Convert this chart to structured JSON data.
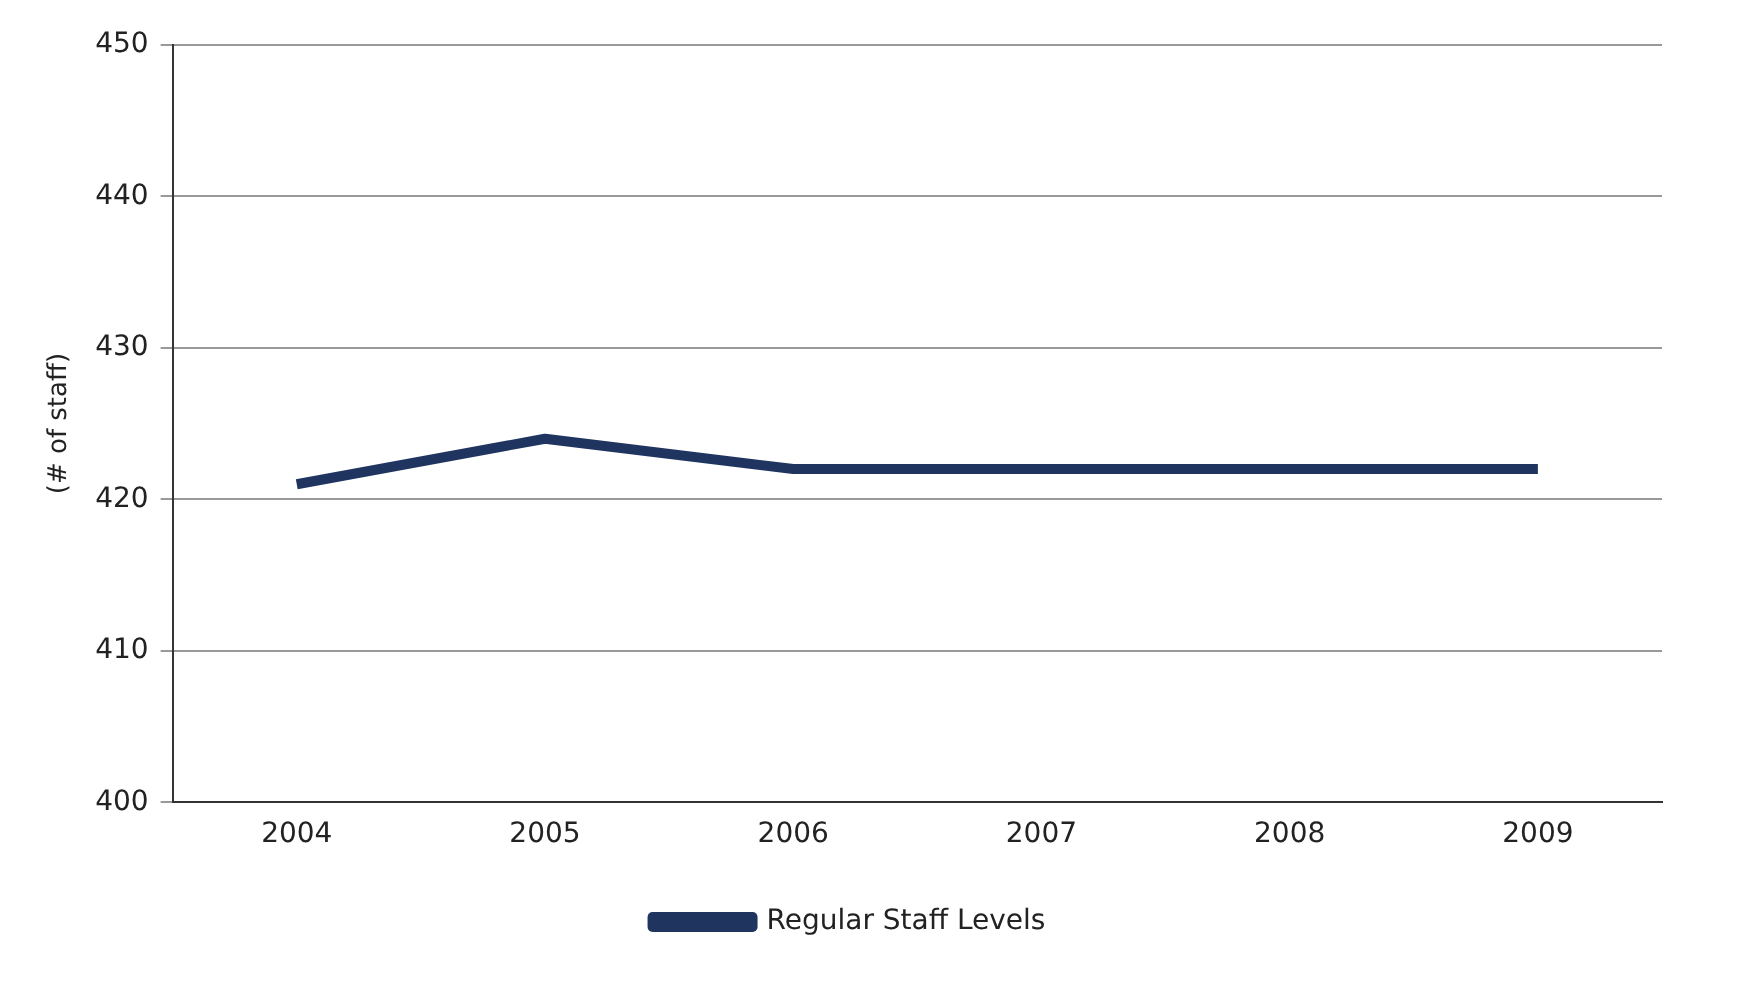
{
  "chart_data": {
    "type": "line",
    "ylabel": "(# of staff)",
    "categories": [
      "2004",
      "2005",
      "2006",
      "2007",
      "2008",
      "2009"
    ],
    "series": [
      {
        "name": "Regular Staff Levels",
        "color": "#1f3560",
        "values": [
          421,
          424,
          422,
          422,
          422,
          422
        ]
      }
    ],
    "ylim": [
      400,
      450
    ],
    "yticks": [
      400,
      410,
      420,
      430,
      440,
      450
    ],
    "grid": "y",
    "legend": "bottom",
    "marker": "none",
    "line_style": "solid"
  }
}
